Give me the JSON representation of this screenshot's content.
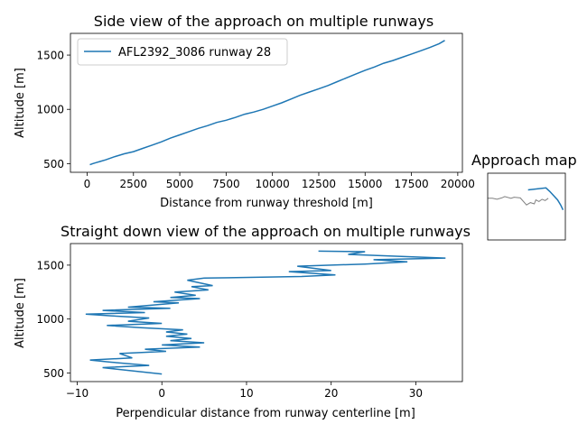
{
  "chart_data": [
    {
      "type": "line",
      "title": "Side view of the approach on multiple runways",
      "xlabel": "Distance from runway threshold [m]",
      "ylabel": "Altitude [m]",
      "xlim": [
        -900,
        20250
      ],
      "ylim": [
        420,
        1700
      ],
      "xticks": [
        0,
        2500,
        5000,
        7500,
        10000,
        12500,
        15000,
        17500,
        20000
      ],
      "xtick_labels": [
        "0",
        "2500",
        "5000",
        "7500",
        "10000",
        "12500",
        "15000",
        "17500",
        "20000"
      ],
      "yticks": [
        500,
        1000,
        1500
      ],
      "ytick_labels": [
        "500",
        "1000",
        "1500"
      ],
      "legend_position": "upper-left",
      "series": [
        {
          "name": "AFL2392_3086 runway 28",
          "color": "#1f77b4",
          "x": [
            150,
            300,
            500,
            700,
            1000,
            1500,
            2000,
            2500,
            3000,
            3500,
            4000,
            4500,
            5000,
            5500,
            6000,
            6500,
            7000,
            7500,
            8000,
            8500,
            9000,
            9500,
            10000,
            10500,
            11000,
            11500,
            12000,
            12500,
            13000,
            13500,
            14000,
            14500,
            15000,
            15500,
            16000,
            16500,
            17000,
            17500,
            18000,
            18500,
            19000,
            19300
          ],
          "y": [
            490,
            500,
            510,
            520,
            535,
            565,
            590,
            610,
            640,
            670,
            700,
            735,
            765,
            795,
            825,
            850,
            880,
            900,
            925,
            955,
            975,
            1000,
            1030,
            1060,
            1095,
            1130,
            1160,
            1190,
            1220,
            1255,
            1290,
            1325,
            1360,
            1390,
            1425,
            1450,
            1480,
            1510,
            1540,
            1570,
            1605,
            1635
          ]
        }
      ],
      "grid": false
    },
    {
      "type": "line",
      "title": "Straight down view of the approach on multiple runways",
      "xlabel": "Perpendicular distance from runway centerline [m]",
      "ylabel": "Altitude [m]",
      "xlim": [
        -10.8,
        35.5
      ],
      "ylim": [
        420,
        1700
      ],
      "xticks": [
        -10,
        0,
        10,
        20,
        30
      ],
      "xtick_labels": [
        "−10",
        "0",
        "10",
        "20",
        "30"
      ],
      "yticks": [
        500,
        1000,
        1500
      ],
      "ytick_labels": [
        "500",
        "1000",
        "1500"
      ],
      "series": [
        {
          "color": "#1f77b4",
          "x": [
            18.5,
            24.0,
            22.0,
            33.5,
            25.0,
            29.0,
            24.0,
            16.0,
            20.0,
            15.0,
            20.5,
            16.5,
            5.0,
            3.0,
            6.0,
            3.5,
            5.5,
            1.5,
            4.0,
            1.0,
            4.5,
            -1.0,
            2.0,
            -4.0,
            1.0,
            -7.0,
            -2.0,
            -9.0,
            -6.0,
            -1.5,
            -4.0,
            0.0,
            -6.5,
            -2.5,
            2.5,
            0.5,
            3.0,
            0.5,
            3.5,
            1.0,
            5.0,
            0.0,
            4.5,
            -2.0,
            0.5,
            -5.0,
            -3.5,
            -8.5,
            -6.0,
            -1.5,
            -7.0,
            0.0
          ],
          "y": [
            1630,
            1625,
            1600,
            1565,
            1550,
            1530,
            1510,
            1490,
            1450,
            1440,
            1410,
            1395,
            1380,
            1360,
            1310,
            1300,
            1270,
            1250,
            1220,
            1200,
            1190,
            1160,
            1150,
            1110,
            1100,
            1080,
            1060,
            1045,
            1030,
            1010,
            980,
            960,
            940,
            920,
            900,
            880,
            860,
            840,
            820,
            800,
            780,
            760,
            740,
            720,
            700,
            680,
            640,
            620,
            600,
            570,
            550,
            490
          ]
        }
      ],
      "grid": false
    },
    {
      "type": "line",
      "title": "Approach map",
      "series": [
        {
          "color": "#808080",
          "x": [
            0.0,
            0.06,
            0.12,
            0.18,
            0.22,
            0.3,
            0.34,
            0.42,
            0.5,
            0.55,
            0.6,
            0.62,
            0.66,
            0.7,
            0.74,
            0.78
          ],
          "y": [
            0.25,
            0.25,
            0.22,
            0.26,
            0.3,
            0.25,
            0.28,
            0.26,
            0.05,
            0.12,
            0.08,
            0.2,
            0.15,
            0.22,
            0.18,
            0.25
          ]
        },
        {
          "color": "#1f77b4",
          "x": [
            0.52,
            0.75,
            0.8,
            0.9,
            0.94,
            0.97
          ],
          "y": [
            0.5,
            0.56,
            0.45,
            0.2,
            0.05,
            -0.1
          ]
        }
      ]
    }
  ]
}
